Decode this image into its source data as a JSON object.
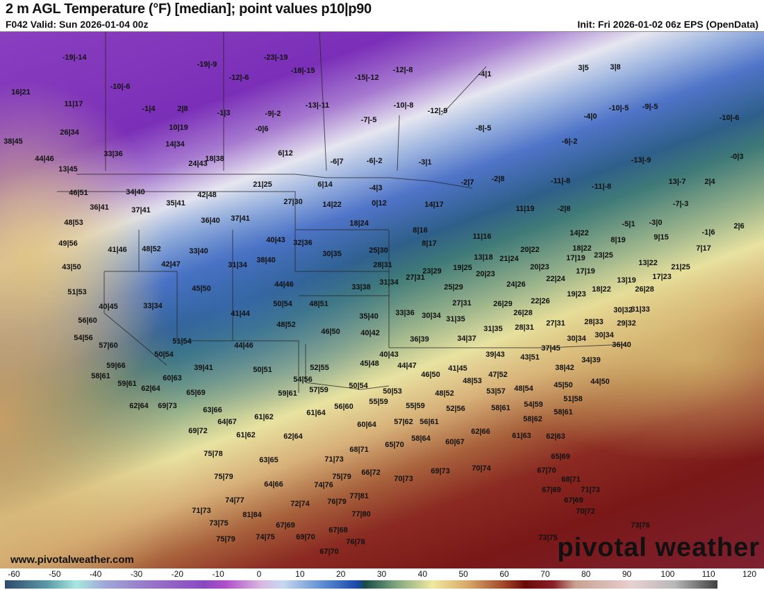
{
  "header": {
    "title": "2 m AGL Temperature (°F) [median]; point values p10|p90",
    "valid": "F042 Valid: Sun 2026-01-04 00z",
    "init": "Init: Fri 2026-01-02 06z EPS (OpenData)"
  },
  "map": {
    "watermark_url": "www.pivotalweather.com",
    "logo": "pivotal weather",
    "point_values": [
      "-19|-14",
      "-23|-19",
      "-19|-9",
      "-18|-15",
      "-12|-8",
      "-4|1",
      "3|5",
      "3|8",
      "-15|-12",
      "-12|-6",
      "-10|-6",
      "16|21",
      "11|17",
      "-1|4",
      "2|8",
      "-1|3",
      "-9|-2",
      "-13|-11",
      "-10|-8",
      "-12|-9",
      "-10|-5",
      "-9|-5",
      "-4|0",
      "-10|-6",
      "-7|-5",
      "10|19",
      "-0|6",
      "-8|-5",
      "-6|-2",
      "26|34",
      "38|45",
      "33|36",
      "14|34",
      "6|12",
      "44|46",
      "18|38",
      "24|43",
      "-6|7",
      "-6|-2",
      "-3|1",
      "-13|-9",
      "-0|3",
      "13|45",
      "-2|8",
      "-2|7",
      "-11|-8",
      "-11|-8",
      "13|-7",
      "2|4",
      "-7|-3",
      "11|19",
      "-2|8",
      "21|25",
      "6|14",
      "-4|3",
      "27|30",
      "14|22",
      "0|12",
      "14|17",
      "46|51",
      "34|40",
      "42|48",
      "35|41",
      "36|41",
      "37|41",
      "-5|1",
      "-3|0",
      "-1|6",
      "2|6",
      "48|53",
      "36|40",
      "37|41",
      "18|24",
      "8|16",
      "14|22",
      "11|16",
      "9|15",
      "49|56",
      "41|46",
      "48|52",
      "40|43",
      "32|36",
      "8|17",
      "18|22",
      "8|19",
      "7|17",
      "33|40",
      "25|30",
      "13|18",
      "20|22",
      "21|24",
      "23|25",
      "43|50",
      "42|47",
      "31|34",
      "38|40",
      "30|35",
      "28|31",
      "20|23",
      "17|19",
      "13|22",
      "21|25",
      "19|25",
      "23|29",
      "27|31",
      "20|23",
      "22|24",
      "17|19",
      "17|23",
      "13|19",
      "51|53",
      "45|50",
      "44|46",
      "33|38",
      "31|34",
      "25|29",
      "24|26",
      "18|22",
      "26|28",
      "40|45",
      "33|34",
      "50|54",
      "48|51",
      "27|31",
      "26|29",
      "22|26",
      "19|23",
      "41|44",
      "35|40",
      "33|36",
      "30|34",
      "31|35",
      "26|28",
      "30|32",
      "31|33",
      "56|60",
      "48|52",
      "46|50",
      "40|42",
      "28|31",
      "27|31",
      "28|33",
      "29|32",
      "31|35",
      "54|56",
      "36|39",
      "34|37",
      "30|34",
      "30|34",
      "36|40",
      "57|60",
      "51|54",
      "44|46",
      "37|45",
      "39|43",
      "43|51",
      "34|39",
      "50|54",
      "40|43",
      "45|48",
      "44|47",
      "59|66",
      "39|41",
      "50|51",
      "52|55",
      "38|42",
      "41|45",
      "46|50",
      "47|52",
      "44|50",
      "58|61",
      "60|63",
      "54|56",
      "48|53",
      "45|50",
      "59|61",
      "62|64",
      "50|54",
      "53|57",
      "48|54",
      "59|61",
      "57|59",
      "50|53",
      "48|52",
      "55|59",
      "55|59",
      "52|56",
      "58|61",
      "54|59",
      "51|58",
      "62|64",
      "69|73",
      "65|69",
      "63|66",
      "56|60",
      "61|64",
      "58|61",
      "64|67",
      "61|62",
      "60|64",
      "57|62",
      "56|61",
      "58|62",
      "69|72",
      "61|62",
      "62|64",
      "58|64",
      "62|66",
      "61|63",
      "62|63",
      "60|67",
      "65|70",
      "68|71",
      "75|78",
      "63|65",
      "71|73",
      "65|69",
      "75|79",
      "64|66",
      "75|79",
      "66|72",
      "70|73",
      "69|73",
      "70|74",
      "67|70",
      "68|71",
      "71|73",
      "74|76",
      "67|69",
      "67|69",
      "74|77",
      "72|74",
      "76|79",
      "77|81",
      "77|80",
      "71|73",
      "81|84",
      "70|72",
      "73|76",
      "73|75",
      "67|69",
      "69|70",
      "67|68",
      "76|78",
      "75|79",
      "74|75",
      "73|75",
      "67|70"
    ]
  },
  "colorbar": {
    "unit": "°F",
    "ticks": [
      "-60",
      "-50",
      "-40",
      "-30",
      "-20",
      "-10",
      "0",
      "10",
      "20",
      "30",
      "40",
      "50",
      "60",
      "70",
      "80",
      "90",
      "100",
      "110",
      "120"
    ],
    "min": -60,
    "max": 120
  }
}
